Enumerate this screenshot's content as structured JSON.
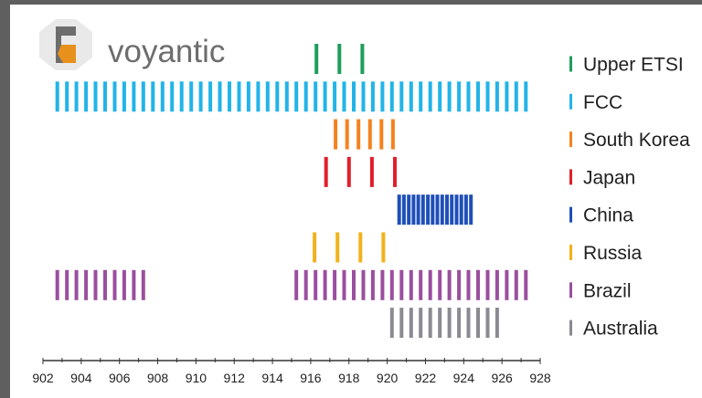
{
  "logo": {
    "text": "voyantic"
  },
  "chart_data": {
    "type": "bar",
    "title": "",
    "xlabel": "",
    "ylabel": "",
    "xlim": [
      902,
      928
    ],
    "x_ticks": [
      902,
      904,
      906,
      908,
      910,
      912,
      914,
      916,
      918,
      920,
      922,
      924,
      926,
      928
    ],
    "legend_position": "right",
    "grid": false,
    "series": [
      {
        "name": "Upper ETSI",
        "color": "#1e9e5a",
        "channels": [
          916.3,
          917.5,
          918.7
        ]
      },
      {
        "name": "FCC",
        "color": "#22b4e8",
        "channel_range": {
          "start": 902.75,
          "end": 927.25,
          "spacing": 0.5
        }
      },
      {
        "name": "South Korea",
        "color": "#f5821f",
        "channels": [
          917.3,
          917.9,
          918.5,
          919.1,
          919.7,
          920.3
        ]
      },
      {
        "name": "Japan",
        "color": "#e0202a",
        "channels": [
          916.8,
          918.0,
          919.2,
          920.4
        ]
      },
      {
        "name": "China",
        "color": "#1f4fb8",
        "channel_range": {
          "start": 920.625,
          "end": 924.375,
          "spacing": 0.25
        }
      },
      {
        "name": "Russia",
        "color": "#f2b21b",
        "channels": [
          916.2,
          917.4,
          918.6,
          919.8
        ]
      },
      {
        "name": "Brazil",
        "color": "#9a4f9e",
        "channel_range_sets": [
          {
            "start": 902.75,
            "end": 907.25,
            "spacing": 0.5
          },
          {
            "start": 915.25,
            "end": 927.25,
            "spacing": 0.5
          }
        ]
      },
      {
        "name": "Australia",
        "color": "#8a8a92",
        "channel_range": {
          "start": 920.25,
          "end": 925.75,
          "spacing": 0.5
        }
      }
    ]
  }
}
